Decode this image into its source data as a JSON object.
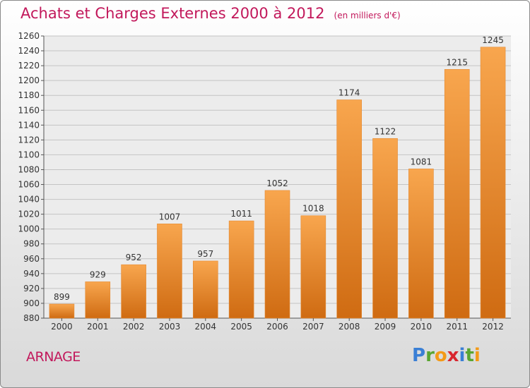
{
  "title": "Achats et Charges Externes 2000 à 2012",
  "unit": "(en milliers d'€)",
  "town": "ARNAGE",
  "logo": {
    "letters": [
      "P",
      "r",
      "o",
      "x",
      "i",
      "t",
      "i"
    ],
    "colors": [
      "#3a7fd5",
      "#59a531",
      "#f39a17",
      "#d8262e",
      "#3a7fd5",
      "#59a531",
      "#f39a17"
    ]
  },
  "colors": {
    "bar_top": "#f8a64e",
    "bar_bottom": "#cf6b12",
    "title": "#c2185b"
  },
  "chart_data": {
    "type": "bar",
    "categories": [
      "2000",
      "2001",
      "2002",
      "2003",
      "2004",
      "2005",
      "2006",
      "2007",
      "2008",
      "2009",
      "2010",
      "2011",
      "2012"
    ],
    "values": [
      899,
      929,
      952,
      1007,
      957,
      1011,
      1052,
      1018,
      1174,
      1122,
      1081,
      1215,
      1245
    ],
    "ylim": [
      880,
      1260
    ],
    "yticks": [
      880,
      900,
      920,
      940,
      960,
      980,
      1000,
      1020,
      1040,
      1060,
      1080,
      1100,
      1120,
      1140,
      1160,
      1180,
      1200,
      1220,
      1240,
      1260
    ],
    "grid": true,
    "title": "Achats et Charges Externes 2000 à 2012",
    "xlabel": "",
    "ylabel": ""
  }
}
